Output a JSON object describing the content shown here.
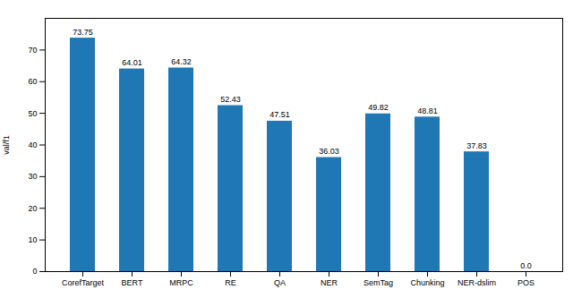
{
  "chart_data": {
    "type": "bar",
    "categories": [
      "CorefTarget",
      "BERT",
      "MRPC",
      "RE",
      "QA",
      "NER",
      "SemTag",
      "Chunking",
      "NER-dslim",
      "POS"
    ],
    "values": [
      73.75,
      64.01,
      64.32,
      52.43,
      47.51,
      36.03,
      49.82,
      48.81,
      37.83,
      0.0
    ],
    "value_labels": [
      "73.75",
      "64.01",
      "64.32",
      "52.43",
      "47.51",
      "36.03",
      "49.82",
      "48.81",
      "37.83",
      "0.0"
    ],
    "color": "#1f77b4",
    "ylabel": "val/f1",
    "ylim": [
      0,
      80
    ],
    "yticks": [
      0,
      10,
      20,
      30,
      40,
      50,
      60,
      70
    ],
    "data_labels": true,
    "grid": false
  }
}
